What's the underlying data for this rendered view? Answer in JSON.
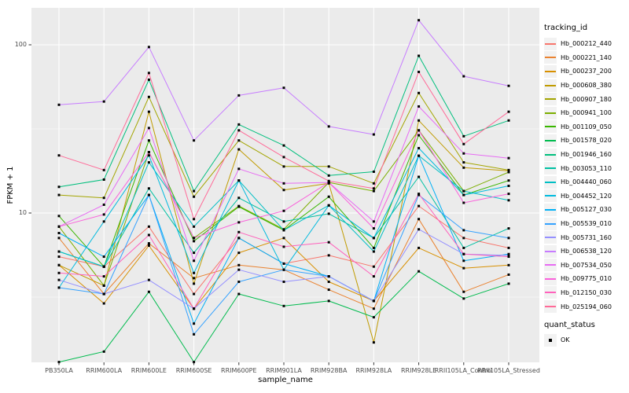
{
  "chart_data": {
    "type": "line",
    "title": "",
    "xlabel": "sample_name",
    "ylabel": "FPKM + 1",
    "yscale": "log10",
    "ylim": [
      1.3,
      166
    ],
    "y_ticks": [
      {
        "value": 100,
        "label": "100"
      },
      {
        "value": 10,
        "label": "10"
      }
    ],
    "y_minor_gridlines": [
      3.162,
      31.62
    ],
    "grid": true,
    "panel_bg": "#ebebeb",
    "grid_color": "#ffffff",
    "point_color": "#000000",
    "categories": [
      "PB350LA",
      "RRIM600LA",
      "RRIM600LE",
      "RRIM600SE",
      "RRIM600PE",
      "RRIM901LA",
      "RRIM928BA",
      "RRIM928LA",
      "RRIM928LE",
      "RRII105LA_Control",
      "RRII105LA_Stressed"
    ],
    "series": [
      {
        "name": "Hb_000212_440",
        "color": "#F8766D",
        "values": [
          5.5,
          4.8,
          8.3,
          3.3,
          7.1,
          5.0,
          5.6,
          4.8,
          11.0,
          7.1,
          6.2
        ]
      },
      {
        "name": "Hb_000221_140",
        "color": "#EA8331",
        "values": [
          7.1,
          3.3,
          6.6,
          4.1,
          4.9,
          4.6,
          3.5,
          2.7,
          9.2,
          3.4,
          4.3
        ]
      },
      {
        "name": "Hb_000237_200",
        "color": "#D89000",
        "values": [
          4.9,
          2.9,
          6.4,
          2.7,
          5.8,
          7.1,
          3.9,
          3.0,
          6.2,
          4.7,
          4.9
        ]
      },
      {
        "name": "Hb_000608_380",
        "color": "#C09B00",
        "values": [
          4.9,
          3.7,
          40.0,
          3.8,
          23.9,
          13.7,
          15.0,
          1.7,
          35.5,
          18.6,
          17.8
        ]
      },
      {
        "name": "Hb_000907_180",
        "color": "#A3A500",
        "values": [
          12.8,
          12.3,
          49.0,
          12.5,
          27.0,
          18.9,
          18.9,
          15.0,
          51.7,
          20.0,
          18.0
        ]
      },
      {
        "name": "Hb_000941_100",
        "color": "#7CAE00",
        "values": [
          8.3,
          3.7,
          23.0,
          7.1,
          11.0,
          8.0,
          15.2,
          13.5,
          31.0,
          13.5,
          17.5
        ]
      },
      {
        "name": "Hb_001109_050",
        "color": "#39B600",
        "values": [
          9.6,
          4.8,
          27.0,
          6.8,
          10.9,
          7.9,
          12.5,
          6.2,
          29.0,
          12.8,
          15.6
        ]
      },
      {
        "name": "Hb_001578_020",
        "color": "#00BB4E",
        "values": [
          1.3,
          1.5,
          3.4,
          1.3,
          3.3,
          2.8,
          3.0,
          2.4,
          4.5,
          3.1,
          3.8
        ]
      },
      {
        "name": "Hb_001946_160",
        "color": "#00BF7D",
        "values": [
          14.3,
          15.8,
          62.0,
          13.5,
          33.6,
          25.2,
          16.7,
          17.6,
          86.0,
          28.6,
          35.5
        ]
      },
      {
        "name": "Hb_003053_110",
        "color": "#00C1A3",
        "values": [
          5.9,
          4.8,
          14.0,
          5.8,
          12.3,
          8.9,
          9.9,
          7.1,
          16.4,
          6.2,
          8.1
        ]
      },
      {
        "name": "Hb_004440_060",
        "color": "#00BFC4",
        "values": [
          5.9,
          4.8,
          20.0,
          8.3,
          15.6,
          7.9,
          11.1,
          5.9,
          21.9,
          13.5,
          11.9
        ]
      },
      {
        "name": "Hb_004452_120",
        "color": "#00BADE",
        "values": [
          3.6,
          8.9,
          22.0,
          4.4,
          15.6,
          4.6,
          11.1,
          7.1,
          24.3,
          12.8,
          14.5
        ]
      },
      {
        "name": "Hb_005127_030",
        "color": "#00B0F6",
        "values": [
          7.6,
          5.5,
          12.8,
          2.2,
          7.1,
          5.0,
          4.2,
          3.0,
          21.9,
          5.2,
          5.7
        ]
      },
      {
        "name": "Hb_005539_010",
        "color": "#35A2FF",
        "values": [
          3.6,
          3.3,
          12.8,
          1.9,
          3.9,
          4.6,
          4.2,
          3.0,
          12.8,
          7.9,
          7.1
        ]
      },
      {
        "name": "Hb_005731_160",
        "color": "#9590FF",
        "values": [
          4.0,
          3.3,
          4.0,
          2.7,
          4.6,
          3.9,
          4.2,
          3.0,
          8.0,
          5.7,
          5.6
        ]
      },
      {
        "name": "Hb_006538_120",
        "color": "#C77CFF",
        "values": [
          44.0,
          46.0,
          97.0,
          27.0,
          50.0,
          55.5,
          32.7,
          29.3,
          140.0,
          65.0,
          57.0
        ]
      },
      {
        "name": "Hb_007534_050",
        "color": "#E76BF3",
        "values": [
          8.3,
          11.2,
          32.0,
          5.2,
          18.3,
          15.0,
          15.2,
          8.9,
          43.0,
          22.6,
          21.2
        ]
      },
      {
        "name": "Hb_009775_010",
        "color": "#FA62DB",
        "values": [
          8.3,
          9.8,
          23.0,
          7.1,
          8.8,
          10.3,
          15.2,
          8.1,
          31.0,
          11.5,
          13.0
        ]
      },
      {
        "name": "Hb_012150_030",
        "color": "#FF62BC",
        "values": [
          4.4,
          4.2,
          7.4,
          2.7,
          7.7,
          6.3,
          6.7,
          4.2,
          13.0,
          5.7,
          5.5
        ]
      },
      {
        "name": "Hb_025194_060",
        "color": "#FF6A98",
        "values": [
          22.0,
          18.0,
          68.0,
          9.2,
          31.0,
          21.5,
          15.5,
          14.0,
          69.0,
          25.7,
          40.0
        ]
      }
    ],
    "legend_position": "right"
  },
  "legend": {
    "tracking_title": "tracking_id",
    "quant_title": "quant_status",
    "quant_items": [
      {
        "label": "OK"
      }
    ]
  }
}
